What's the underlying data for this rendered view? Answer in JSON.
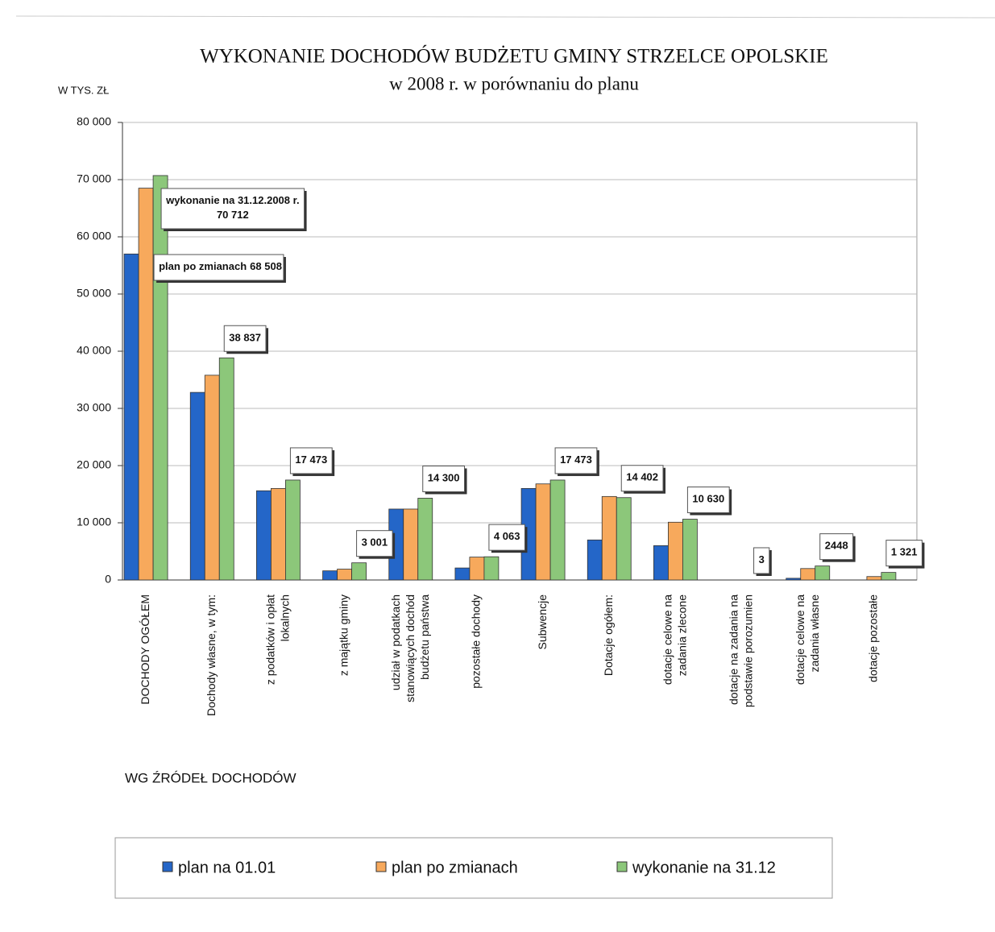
{
  "chart_data": {
    "type": "bar",
    "title": "WYKONANIE DOCHODÓW BUDŻETU GMINY STRZELCE OPOLSKIE",
    "subtitle": "w 2008 r.  w porównaniu do planu",
    "y_label": "W TYS. ZŁ",
    "x_label": "WG ŹRÓDEŁ DOCHODÓW",
    "annotation": "wykonanie na 31.12.2008 r.",
    "categories": [
      "DOCHODY OGÓŁEM",
      "Dochody własne, w tym:",
      "z podatków i opłat lokalnych",
      "z majątku gminy",
      "udział w podatkach stanowiących dochód budżetu państwa",
      "pozostałe dochody",
      "Subwencje",
      "Dotacje ogółem:",
      "dotacje celowe na zadania zlecone",
      "dotacje na zadania na podstawie porozumien",
      "dotacje celowe na zadania własne",
      "dotacje pozostałe"
    ],
    "series": [
      {
        "name": "plan na 01.01",
        "color": "#2466c8",
        "values": [
          57000,
          32800,
          15600,
          1600,
          12400,
          2100,
          16000,
          7000,
          6000,
          0,
          300,
          0
        ]
      },
      {
        "name": "plan po zmianach",
        "color": "#f7a95c",
        "values": [
          68508,
          35800,
          16000,
          1900,
          12400,
          4000,
          16800,
          14600,
          10100,
          0,
          2000,
          600
        ],
        "value_labels": [
          "68 508",
          null,
          null,
          null,
          null,
          null,
          null,
          null,
          null,
          null,
          null,
          null
        ]
      },
      {
        "name": "wykonanie na 31.12",
        "color": "#8cc77a",
        "values": [
          70712,
          38837,
          17473,
          3001,
          14300,
          4063,
          17473,
          14402,
          10630,
          3,
          2448,
          1321
        ],
        "value_labels": [
          "70 712",
          "38 837",
          "17 473",
          "3 001",
          "14 300",
          "4 063",
          "17 473",
          "14 402",
          "10 630",
          "3",
          "2448",
          "1 321"
        ]
      }
    ],
    "ylim": [
      0,
      80000
    ],
    "yticks": [
      {
        "value": 0,
        "label": "0"
      },
      {
        "value": 10000,
        "label": "10 000"
      },
      {
        "value": 20000,
        "label": "20 000"
      },
      {
        "value": 30000,
        "label": "30 000"
      },
      {
        "value": 40000,
        "label": "40 000"
      },
      {
        "value": 50000,
        "label": "50 000"
      },
      {
        "value": 60000,
        "label": "60 000"
      },
      {
        "value": 70000,
        "label": "70 000"
      },
      {
        "value": 80000,
        "label": "80 000"
      }
    ],
    "grid": true
  }
}
